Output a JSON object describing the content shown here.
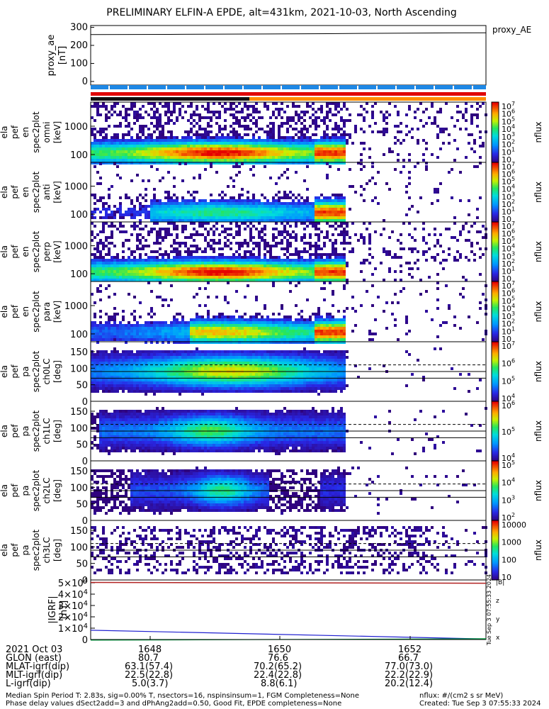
{
  "chart_data": {
    "type": "heatmap",
    "title": "PRELIMINARY ELFIN-A EPDE, alt=431km, 2021-10-03, North Ascending",
    "x_ticks": [
      "1648",
      "1650",
      "1652"
    ],
    "panels": [
      {
        "id": "proxy_ae",
        "type": "line",
        "ylabel": [
          "proxy_ae",
          "[nT]"
        ],
        "legend": "proxy_AE",
        "yticks": [
          "300",
          "200",
          "100",
          "0"
        ],
        "ylim": [
          -20,
          310
        ],
        "values": [
          260,
          261,
          263,
          265,
          268,
          270
        ]
      },
      {
        "id": "pef_spec_omni",
        "ylabel": [
          "ela",
          "pef",
          "en",
          "spec2plot",
          "omni",
          "[keV]"
        ],
        "yticks": [
          "1000",
          "100"
        ],
        "cbar_ticks": [
          "10",
          "10",
          "10",
          "10",
          "10",
          "10",
          "10",
          "10"
        ],
        "cbar_exps": [
          "7",
          "6",
          "5",
          "4",
          "3",
          "2",
          "1",
          ""
        ],
        "cbar_label": "nflux"
      },
      {
        "id": "pef_spec_anti",
        "ylabel": [
          "ela",
          "pef",
          "en",
          "spec2plot",
          "anti",
          "[keV]"
        ],
        "yticks": [
          "1000",
          "100"
        ],
        "cbar_ticks": [
          "10",
          "10",
          "10",
          "10",
          "10",
          "10",
          "10",
          "10"
        ],
        "cbar_exps": [
          "7",
          "6",
          "5",
          "4",
          "3",
          "2",
          "1",
          ""
        ],
        "cbar_label": "nflux"
      },
      {
        "id": "pef_spec_perp",
        "ylabel": [
          "ela",
          "pef",
          "en",
          "spec2plot",
          "perp",
          "[keV]"
        ],
        "yticks": [
          "1000",
          "100"
        ],
        "cbar_ticks": [
          "10",
          "10",
          "10",
          "10",
          "10",
          "10",
          "10",
          "10"
        ],
        "cbar_exps": [
          "7",
          "6",
          "5",
          "4",
          "3",
          "2",
          "1",
          ""
        ],
        "cbar_label": "nflux"
      },
      {
        "id": "pef_spec_para",
        "ylabel": [
          "ela",
          "pef",
          "en",
          "spec2plot",
          "para",
          "[keV]"
        ],
        "yticks": [
          "1000",
          "100"
        ],
        "cbar_ticks": [
          "10",
          "10",
          "10",
          "10",
          "10",
          "10",
          "10",
          "10"
        ],
        "cbar_exps": [
          "7",
          "6",
          "5",
          "4",
          "3",
          "2",
          "1",
          ""
        ],
        "cbar_label": "nflux"
      },
      {
        "id": "pef_pa_ch0",
        "ylabel": [
          "ela",
          "pef",
          "pa",
          "spec2plot",
          "ch0LC",
          "[deg]"
        ],
        "yticks": [
          "150",
          "100",
          "50",
          "0"
        ],
        "cbar_ticks": [
          "10",
          "10",
          "10",
          "10"
        ],
        "cbar_exps": [
          "7",
          "6",
          "5",
          "4"
        ],
        "cbar_label": "nflux"
      },
      {
        "id": "pef_pa_ch1",
        "ylabel": [
          "ela",
          "pef",
          "pa",
          "spec2plot",
          "ch1LC",
          "[deg]"
        ],
        "yticks": [
          "150",
          "100",
          "50",
          "0"
        ],
        "cbar_ticks": [
          "10",
          "10",
          "10"
        ],
        "cbar_exps": [
          "6",
          "5",
          "4"
        ],
        "cbar_label": "nflux"
      },
      {
        "id": "pef_pa_ch2",
        "ylabel": [
          "ela",
          "pef",
          "pa",
          "spec2plot",
          "ch2LC",
          "[deg]"
        ],
        "yticks": [
          "150",
          "100",
          "50",
          "0"
        ],
        "cbar_ticks": [
          "10",
          "10",
          "10",
          "10"
        ],
        "cbar_exps": [
          "5",
          "4",
          "3",
          "2"
        ],
        "cbar_label": "nflux"
      },
      {
        "id": "pef_pa_ch3",
        "ylabel": [
          "ela",
          "pef",
          "pa",
          "spec2plot",
          "ch3LC",
          "[deg]"
        ],
        "yticks": [
          "150",
          "100",
          "50",
          "0"
        ],
        "cbar_ticks": [
          "10000",
          "1000",
          "100",
          "10"
        ],
        "cbar_exps": [
          "",
          "",
          "",
          ""
        ],
        "cbar_label": "nflux"
      },
      {
        "id": "igrf",
        "type": "line",
        "ylabel": [
          "|IGRF|",
          "[nT]"
        ],
        "yticks": [
          "5×10",
          "4×10",
          "3×10",
          "2×10",
          "1×10",
          "0"
        ],
        "ytick_exps": [
          "4",
          "4",
          "4",
          "4",
          "4",
          ""
        ],
        "ylim": [
          0,
          50000
        ],
        "legend": [
          "x",
          "y",
          "z",
          "|B|"
        ]
      }
    ],
    "ephemeris": {
      "header": "2021 Oct 03",
      "rows": [
        {
          "label": "GLON (east)",
          "values": [
            "80.7",
            "76.6",
            "66.7"
          ]
        },
        {
          "label": "MLAT-igrf(dip)",
          "values": [
            "63.1(57.4)",
            "70.2(65.2)",
            "77.0(73.0)"
          ]
        },
        {
          "label": "MLT-igrf(dip)",
          "values": [
            "22.5(22.8)",
            "22.4(22.8)",
            "22.2(22.9)"
          ]
        },
        {
          "label": "L-igrf(dip)",
          "values": [
            "5.0(3.7)",
            "8.8(6.1)",
            "20.2(12.4)"
          ]
        }
      ]
    }
  },
  "footer": {
    "line1_left": "Median Spin Period T: 2.83s, sig=0.00% T, nsectors=16, nspinsinsum=1, FGM Completeness=None",
    "line2_left": "Phase delay values dSect2add=3 and dPhAng2add=0.50, Good Fit, EPDE completeness=None",
    "line1_right": "nflux: #/(cm2 s sr MeV)",
    "line2_right": "Created: Tue Sep  3 07:55:33 2024",
    "vertical_stamp": "Tue Sep  3 07:55:33 2024"
  },
  "colors": {
    "bar_blue": "#1e88e5",
    "bar_black": "#111111",
    "bar_orange": "#ff8c00",
    "bar_red": "#e00000"
  }
}
